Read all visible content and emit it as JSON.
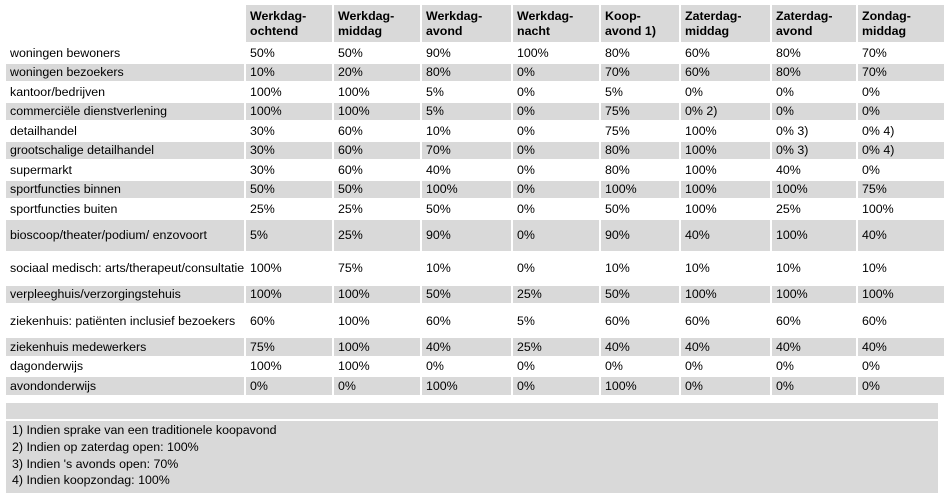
{
  "columns": [
    {
      "line1": "Werkdag-",
      "line2": "ochtend"
    },
    {
      "line1": "Werkdag-",
      "line2": "middag"
    },
    {
      "line1": "Werkdag-",
      "line2": "avond"
    },
    {
      "line1": "Werkdag-",
      "line2": "nacht"
    },
    {
      "line1": "Koop-",
      "line2": "avond 1)"
    },
    {
      "line1": "Zaterdag-",
      "line2": "middag"
    },
    {
      "line1": "Zaterdag-",
      "line2": "avond"
    },
    {
      "line1": "Zondag-",
      "line2": "middag"
    }
  ],
  "rows": [
    {
      "label": "woningen bewoners",
      "values": [
        "50%",
        "50%",
        "90%",
        "100%",
        "80%",
        "60%",
        "80%",
        "70%"
      ]
    },
    {
      "label": "woningen bezoekers",
      "values": [
        "10%",
        "20%",
        "80%",
        "0%",
        "70%",
        "60%",
        "80%",
        "70%"
      ]
    },
    {
      "label": "kantoor/bedrijven",
      "values": [
        "100%",
        "100%",
        "5%",
        "0%",
        "5%",
        "0%",
        "0%",
        "0%"
      ]
    },
    {
      "label": "commerciële dienstverlening",
      "values": [
        "100%",
        "100%",
        "5%",
        "0%",
        "75%",
        "0%  2)",
        "0%",
        "0%"
      ]
    },
    {
      "label": "detailhandel",
      "values": [
        "30%",
        "60%",
        "10%",
        "0%",
        "75%",
        "100%",
        "0%  3)",
        "0%  4)"
      ]
    },
    {
      "label": "grootschalige detailhandel",
      "values": [
        "30%",
        "60%",
        "70%",
        "0%",
        "80%",
        "100%",
        "0%  3)",
        "0%  4)"
      ]
    },
    {
      "label": "supermarkt",
      "values": [
        "30%",
        "60%",
        "40%",
        "0%",
        "80%",
        "100%",
        "40%",
        "0%"
      ]
    },
    {
      "label": "sportfuncties binnen",
      "values": [
        "50%",
        "50%",
        "100%",
        "0%",
        "100%",
        "100%",
        "100%",
        "75%"
      ]
    },
    {
      "label": "sportfuncties buiten",
      "values": [
        "25%",
        "25%",
        "50%",
        "0%",
        "50%",
        "100%",
        "25%",
        "100%"
      ]
    },
    {
      "label": "bioscoop/theater/podium/ enzovoort",
      "values": [
        "5%",
        "25%",
        "90%",
        "0%",
        "90%",
        "40%",
        "100%",
        "40%"
      ]
    },
    {
      "label": "sociaal medisch: arts/therapeut/consultatiebureau",
      "values": [
        "100%",
        "75%",
        "10%",
        "0%",
        "10%",
        "10%",
        "10%",
        "10%"
      ]
    },
    {
      "label": "verpleeghuis/verzorgingstehuis",
      "values": [
        "100%",
        "100%",
        "50%",
        "25%",
        "50%",
        "100%",
        "100%",
        "100%"
      ]
    },
    {
      "label": "ziekenhuis: patiënten inclusief bezoekers",
      "values": [
        "60%",
        "100%",
        "60%",
        "5%",
        "60%",
        "60%",
        "60%",
        "60%"
      ]
    },
    {
      "label": "ziekenhuis medewerkers",
      "values": [
        "75%",
        "100%",
        "40%",
        "25%",
        "40%",
        "40%",
        "40%",
        "40%"
      ]
    },
    {
      "label": "dagonderwijs",
      "values": [
        "100%",
        "100%",
        "0%",
        "0%",
        "0%",
        "0%",
        "0%",
        "0%"
      ]
    },
    {
      "label": "avondonderwijs",
      "values": [
        "0%",
        "0%",
        "100%",
        "0%",
        "100%",
        "0%",
        "0%",
        "0%"
      ]
    }
  ],
  "notes": [
    "1) Indien sprake van een traditionele koopavond",
    "2) Indien op zaterdag open: 100%",
    "3) Indien 's avonds open: 70%",
    "4) Indien koopzondag: 100%"
  ],
  "colors": {
    "band": "#d9d9d9",
    "background": "#ffffff"
  }
}
